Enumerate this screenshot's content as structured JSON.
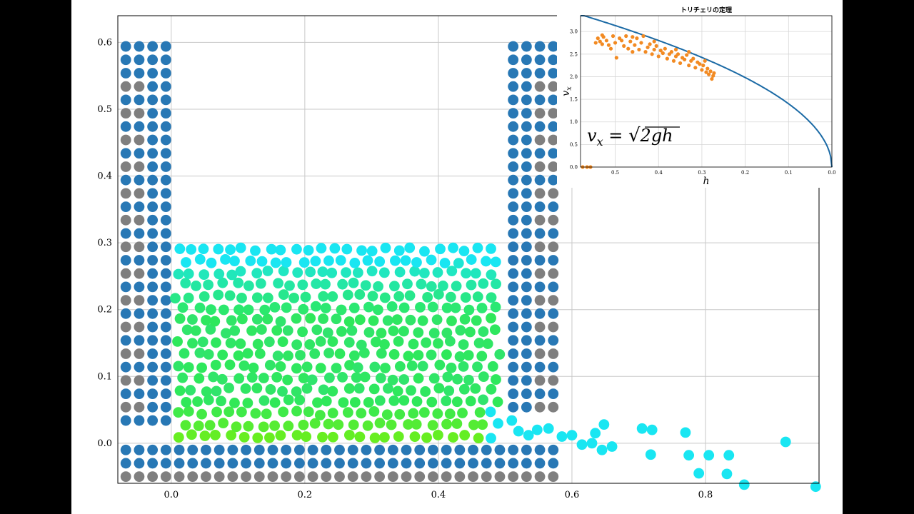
{
  "colors": {
    "page_background": "#000000",
    "plot_background": "#ffffff",
    "wall_blue": "#2878b5",
    "wall_gray": "#7f7f7f",
    "water_cyan": "#19e6f2",
    "water_green": "#2ee85a",
    "water_lime": "#66ee22",
    "inset_points": "#f28a22",
    "inset_curve": "#1b6aa5",
    "grid": "#c8c8c8"
  },
  "chart_data": [
    {
      "type": "scatter",
      "description": "particle simulation of water in a tank draining through a gap at the bottom right",
      "xlim": [
        -0.08,
        0.97
      ],
      "ylim": [
        -0.06,
        0.64
      ],
      "xticks": [
        0.0,
        0.2,
        0.4,
        0.6,
        0.8
      ],
      "xtick_labels": [
        "0.0",
        "0.2",
        "0.4",
        "0.6",
        "0.8"
      ],
      "yticks": [
        0.0,
        0.1,
        0.2,
        0.3,
        0.4,
        0.5,
        0.6
      ],
      "ytick_labels": [
        "0.0",
        "0.1",
        "0.2",
        "0.3",
        "0.4",
        "0.5",
        "0.6"
      ],
      "grid": true,
      "walls": {
        "left_columns_x": [
          -0.068,
          -0.048,
          -0.028,
          -0.008
        ],
        "right_columns_x": [
          0.512,
          0.532,
          0.552,
          0.572
        ],
        "wall_rows_y_range": [
          0.03,
          0.594
        ],
        "right_wall_bottom_y": 0.05,
        "floor_rows_y": [
          -0.01,
          -0.03,
          -0.05
        ],
        "floor_x_range": [
          -0.068,
          0.572
        ],
        "row_spacing": 0.02
      },
      "water": {
        "x_range": [
          0.01,
          0.49
        ],
        "y_range": [
          0.01,
          0.312
        ],
        "surface_y": 0.305
      },
      "jet_particles": [
        [
          0.51,
          0.034
        ],
        [
          0.52,
          0.018
        ],
        [
          0.535,
          0.012
        ],
        [
          0.548,
          0.02
        ],
        [
          0.565,
          0.022
        ],
        [
          0.585,
          0.01
        ],
        [
          0.6,
          0.012
        ],
        [
          0.615,
          -0.002
        ],
        [
          0.63,
          0.0
        ],
        [
          0.635,
          0.015
        ],
        [
          0.648,
          0.028
        ],
        [
          0.645,
          -0.01
        ],
        [
          0.66,
          -0.005
        ],
        [
          0.705,
          0.022
        ],
        [
          0.72,
          0.02
        ],
        [
          0.718,
          -0.017
        ],
        [
          0.77,
          0.016
        ],
        [
          0.775,
          -0.018
        ],
        [
          0.79,
          -0.045
        ],
        [
          0.805,
          -0.018
        ],
        [
          0.835,
          -0.018
        ],
        [
          0.832,
          -0.046
        ],
        [
          0.858,
          -0.062
        ],
        [
          0.92,
          0.002
        ],
        [
          0.965,
          -0.065
        ]
      ]
    },
    {
      "type": "scatter",
      "title": "トリチェリの定理",
      "xlabel": "h",
      "ylabel": "v_x",
      "formula": "v_x = √(2gh)",
      "xlim": [
        0.58,
        0.0
      ],
      "ylim": [
        0.0,
        3.35
      ],
      "xticks": [
        0.5,
        0.4,
        0.3,
        0.2,
        0.1,
        0.0
      ],
      "xtick_labels": [
        "0.5",
        "0.4",
        "0.3",
        "0.2",
        "0.1",
        "0.0"
      ],
      "yticks": [
        0.0,
        0.5,
        1.0,
        1.5,
        2.0,
        2.5,
        3.0
      ],
      "ytick_labels": [
        "0.0",
        "0.5",
        "1.0",
        "1.5",
        "2.0",
        "2.5",
        "3.0"
      ],
      "grid": true,
      "theory_curve": "sqrt(2 * 9.81 * h)",
      "points": [
        [
          0.575,
          0.0
        ],
        [
          0.565,
          0.0
        ],
        [
          0.557,
          0.0
        ],
        [
          0.545,
          2.75
        ],
        [
          0.54,
          2.85
        ],
        [
          0.535,
          2.78
        ],
        [
          0.53,
          2.72
        ],
        [
          0.527,
          2.88
        ],
        [
          0.52,
          2.8
        ],
        [
          0.515,
          2.7
        ],
        [
          0.51,
          2.62
        ],
        [
          0.505,
          2.9
        ],
        [
          0.5,
          2.75
        ],
        [
          0.497,
          2.42
        ],
        [
          0.49,
          2.85
        ],
        [
          0.485,
          2.8
        ],
        [
          0.48,
          2.68
        ],
        [
          0.475,
          2.9
        ],
        [
          0.47,
          2.62
        ],
        [
          0.465,
          2.78
        ],
        [
          0.46,
          2.55
        ],
        [
          0.455,
          2.7
        ],
        [
          0.45,
          2.85
        ],
        [
          0.445,
          2.6
        ],
        [
          0.44,
          2.75
        ],
        [
          0.435,
          2.9
        ],
        [
          0.43,
          2.55
        ],
        [
          0.425,
          2.65
        ],
        [
          0.42,
          2.72
        ],
        [
          0.415,
          2.5
        ],
        [
          0.41,
          2.6
        ],
        [
          0.405,
          2.68
        ],
        [
          0.4,
          2.45
        ],
        [
          0.395,
          2.58
        ],
        [
          0.39,
          2.52
        ],
        [
          0.385,
          2.62
        ],
        [
          0.38,
          2.4
        ],
        [
          0.375,
          2.5
        ],
        [
          0.37,
          2.55
        ],
        [
          0.365,
          2.35
        ],
        [
          0.36,
          2.45
        ],
        [
          0.355,
          2.5
        ],
        [
          0.35,
          2.3
        ],
        [
          0.345,
          2.42
        ],
        [
          0.34,
          2.38
        ],
        [
          0.335,
          2.48
        ],
        [
          0.33,
          2.25
        ],
        [
          0.325,
          2.35
        ],
        [
          0.32,
          2.4
        ],
        [
          0.315,
          2.2
        ],
        [
          0.31,
          2.32
        ],
        [
          0.305,
          2.28
        ],
        [
          0.3,
          2.15
        ],
        [
          0.297,
          2.25
        ],
        [
          0.293,
          2.35
        ],
        [
          0.29,
          2.1
        ],
        [
          0.287,
          2.18
        ],
        [
          0.284,
          2.05
        ],
        [
          0.28,
          2.12
        ],
        [
          0.277,
          1.95
        ],
        [
          0.274,
          2.02
        ],
        [
          0.272,
          2.08
        ],
        [
          0.53,
          2.92
        ],
        [
          0.46,
          2.88
        ],
        [
          0.41,
          2.78
        ],
        [
          0.36,
          2.6
        ],
        [
          0.33,
          2.55
        ]
      ]
    }
  ]
}
